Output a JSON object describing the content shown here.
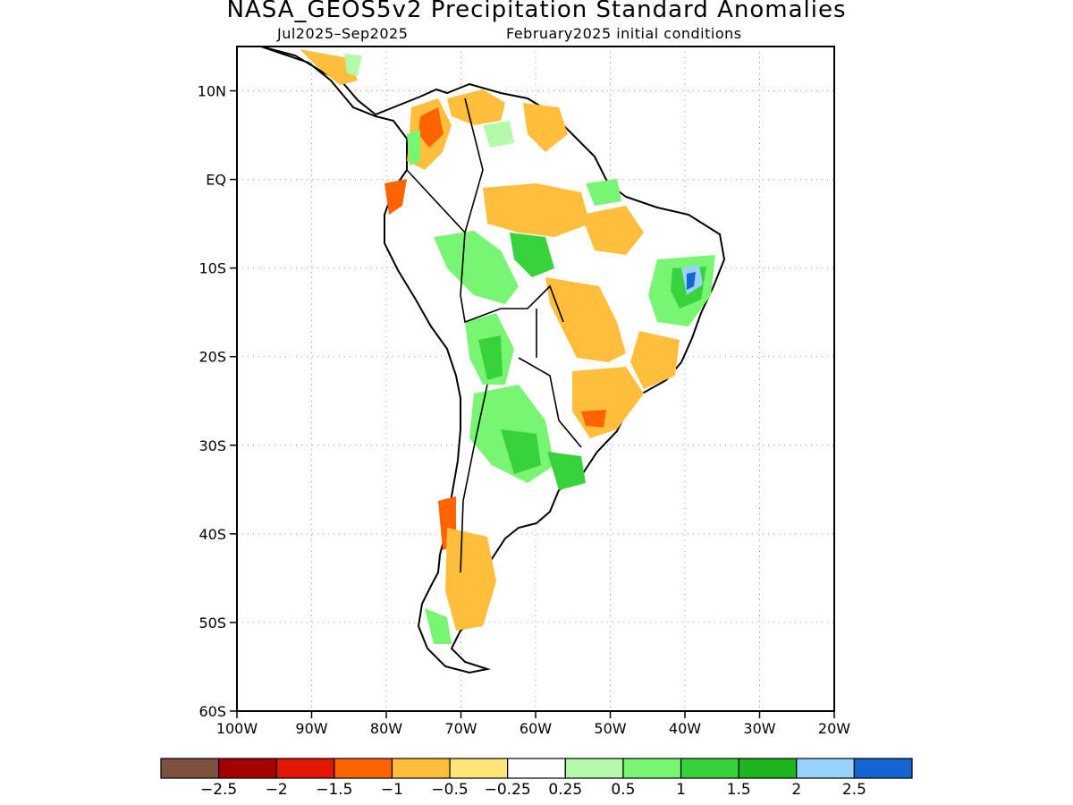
{
  "figure": {
    "title": "NASA_GEOS5v2 Precipitation Standard Anomalies",
    "period": "Jul2025–Sep2025",
    "init": "February2025 initial conditions"
  },
  "chart_data": {
    "type": "heatmap",
    "variable": "Precipitation Standard Anomalies",
    "x_axis": {
      "range": [
        -100,
        -20
      ],
      "ticks": [
        -100,
        -90,
        -80,
        -70,
        -60,
        -50,
        -40,
        -30,
        -20
      ],
      "tick_labels": [
        "100W",
        "90W",
        "80W",
        "70W",
        "60W",
        "50W",
        "40W",
        "30W",
        "20W"
      ]
    },
    "y_axis": {
      "range": [
        -60,
        15
      ],
      "ticks": [
        10,
        0,
        -10,
        -20,
        -30,
        -40,
        -50,
        -60
      ],
      "tick_labels": [
        "10N",
        "EQ",
        "10S",
        "20S",
        "30S",
        "40S",
        "50S",
        "60S"
      ]
    },
    "grid": true,
    "colorbar": {
      "levels": [
        "−2.5",
        "−2",
        "−1.5",
        "−1",
        "−0.5",
        "−0.25",
        "0.25",
        "0.5",
        "1",
        "1.5",
        "2",
        "2.5"
      ],
      "colors": [
        "#7d5040",
        "#a50000",
        "#e11800",
        "#ff6400",
        "#ffbe3c",
        "#ffe678",
        "#ffffff",
        "#b4faaa",
        "#78f573",
        "#37d23c",
        "#1eb41e",
        "#96d2fa",
        "#1464d2"
      ]
    }
  }
}
